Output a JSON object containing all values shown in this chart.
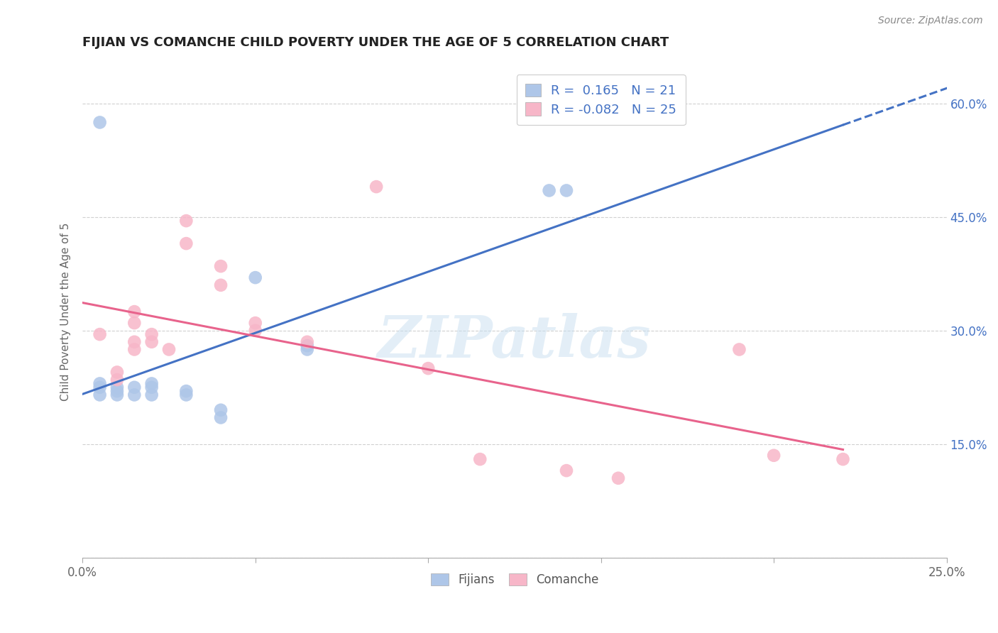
{
  "title": "FIJIAN VS COMANCHE CHILD POVERTY UNDER THE AGE OF 5 CORRELATION CHART",
  "source": "Source: ZipAtlas.com",
  "ylabel_label": "Child Poverty Under the Age of 5",
  "xlim": [
    0.0,
    0.25
  ],
  "ylim": [
    0.0,
    0.65
  ],
  "x_ticks": [
    0.0,
    0.05,
    0.1,
    0.15,
    0.2,
    0.25
  ],
  "y_ticks": [
    0.0,
    0.15,
    0.3,
    0.45,
    0.6
  ],
  "fijian_color": "#aec6e8",
  "comanche_color": "#f7b6c8",
  "fijian_line_color": "#4472c4",
  "comanche_line_color": "#e8638c",
  "R_fijian": 0.165,
  "N_fijian": 21,
  "R_comanche": -0.082,
  "N_comanche": 25,
  "fijian_points": [
    [
      0.005,
      0.575
    ],
    [
      0.005,
      0.215
    ],
    [
      0.005,
      0.225
    ],
    [
      0.005,
      0.23
    ],
    [
      0.01,
      0.215
    ],
    [
      0.01,
      0.22
    ],
    [
      0.01,
      0.225
    ],
    [
      0.015,
      0.215
    ],
    [
      0.015,
      0.225
    ],
    [
      0.02,
      0.215
    ],
    [
      0.02,
      0.225
    ],
    [
      0.02,
      0.23
    ],
    [
      0.03,
      0.215
    ],
    [
      0.03,
      0.22
    ],
    [
      0.04,
      0.185
    ],
    [
      0.04,
      0.195
    ],
    [
      0.05,
      0.37
    ],
    [
      0.065,
      0.275
    ],
    [
      0.065,
      0.28
    ],
    [
      0.135,
      0.485
    ],
    [
      0.14,
      0.485
    ]
  ],
  "comanche_points": [
    [
      0.005,
      0.295
    ],
    [
      0.01,
      0.235
    ],
    [
      0.01,
      0.245
    ],
    [
      0.015,
      0.275
    ],
    [
      0.015,
      0.285
    ],
    [
      0.015,
      0.31
    ],
    [
      0.015,
      0.325
    ],
    [
      0.02,
      0.285
    ],
    [
      0.02,
      0.295
    ],
    [
      0.025,
      0.275
    ],
    [
      0.03,
      0.415
    ],
    [
      0.03,
      0.445
    ],
    [
      0.04,
      0.36
    ],
    [
      0.04,
      0.385
    ],
    [
      0.05,
      0.3
    ],
    [
      0.05,
      0.31
    ],
    [
      0.065,
      0.285
    ],
    [
      0.085,
      0.49
    ],
    [
      0.1,
      0.25
    ],
    [
      0.115,
      0.13
    ],
    [
      0.14,
      0.115
    ],
    [
      0.155,
      0.105
    ],
    [
      0.19,
      0.275
    ],
    [
      0.2,
      0.135
    ],
    [
      0.22,
      0.13
    ]
  ],
  "watermark": "ZIPatlas",
  "background_color": "#ffffff",
  "grid_color": "#d0d0d0"
}
